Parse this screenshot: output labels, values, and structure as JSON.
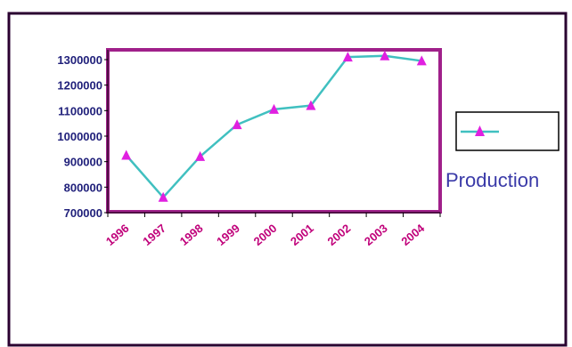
{
  "chart_data": {
    "type": "line",
    "title": "",
    "xlabel": "",
    "ylabel": "",
    "categories": [
      "1996",
      "1997",
      "1998",
      "1999",
      "2000",
      "2001",
      "2002",
      "2003",
      "2004"
    ],
    "series": [
      {
        "name": "Production",
        "values": [
          925000,
          760000,
          920000,
          1045000,
          1105000,
          1120000,
          1310000,
          1315000,
          1295000
        ]
      }
    ],
    "ylim": [
      700000,
      1300000
    ],
    "yticks": [
      "1300000",
      "1200000",
      "1100000",
      "1000000",
      "900000",
      "800000",
      "700000"
    ],
    "grid": false,
    "legend_position": "right",
    "colors": {
      "line": "#40c0c0",
      "marker": "#e020e0",
      "plot_border": "#a0208a",
      "frame": "#2a0030",
      "legend_text": "#3a3aa8",
      "x_tick_text": "#c0007a",
      "y_tick_text": "#1f1f7a"
    },
    "marker": "triangle"
  }
}
